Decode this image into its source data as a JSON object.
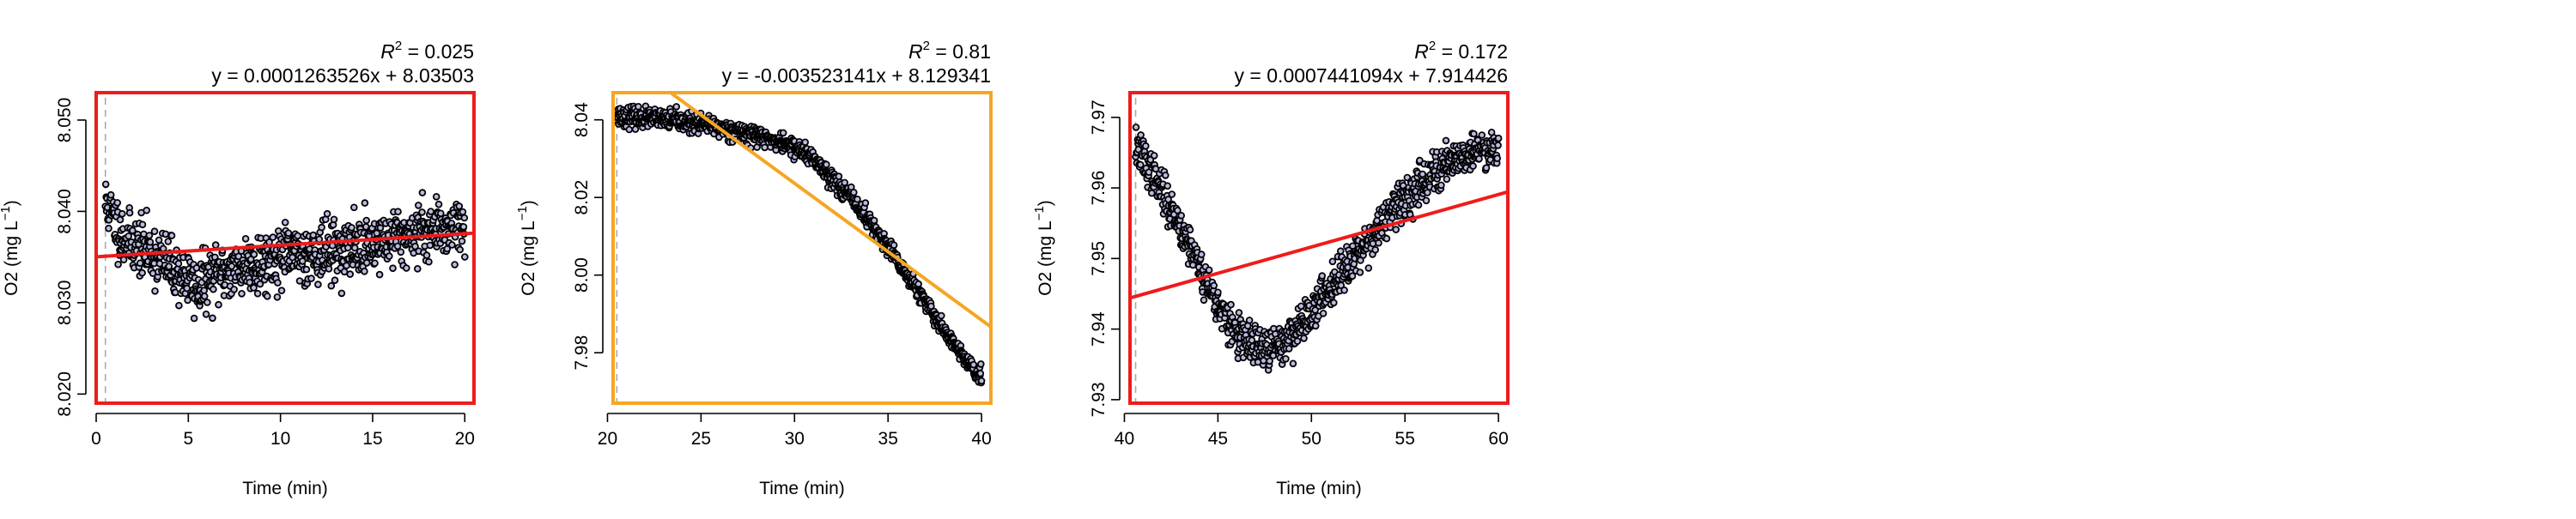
{
  "chart_data": [
    {
      "type": "scatter",
      "xlabel": "Time (min)",
      "ylabel": "O2 (mg L",
      "ylabel_unit_suffix": ")",
      "ylabel_sup": "−1",
      "r2_label": "R",
      "r2_sup": "2",
      "r2_value": " = 0.025",
      "equation": "y = 0.0001263526x + 8.03503",
      "slope": 0.0001263526,
      "intercept": 8.03503,
      "xlim": [
        0,
        20.5
      ],
      "ylim": [
        8.019,
        8.053
      ],
      "xticks": [
        "0",
        "5",
        "10",
        "15",
        "20"
      ],
      "yticks": [
        "8.020",
        "8.030",
        "8.040",
        "8.050"
      ],
      "highlight_color": "#ee1c1c",
      "marker_x": 0.5,
      "series": [
        {
          "trend": [
            [
              0.5,
              8.041
            ],
            [
              1,
              8.039
            ],
            [
              1.5,
              8.037
            ],
            [
              2,
              8.0365
            ],
            [
              3,
              8.0355
            ],
            [
              4,
              8.034
            ],
            [
              5,
              8.0325
            ],
            [
              5.5,
              8.0315
            ],
            [
              6,
              8.0325
            ],
            [
              7,
              8.0335
            ],
            [
              8,
              8.034
            ],
            [
              10,
              8.035
            ],
            [
              12,
              8.0355
            ],
            [
              14,
              8.036
            ],
            [
              16,
              8.037
            ],
            [
              18,
              8.038
            ],
            [
              20,
              8.0385
            ]
          ],
          "noise": 0.0029,
          "n": 900,
          "seed": 11
        }
      ]
    },
    {
      "type": "scatter",
      "xlabel": "Time (min)",
      "ylabel": "O2 (mg L",
      "ylabel_unit_suffix": ")",
      "ylabel_sup": "−1",
      "r2_label": "R",
      "r2_sup": "2",
      "r2_value": " = 0.81",
      "equation": "y = -0.003523141x + 8.129341",
      "slope": -0.003523141,
      "intercept": 8.129341,
      "xlim": [
        20.3,
        40.5
      ],
      "ylim": [
        7.967,
        8.047
      ],
      "xticks": [
        "20",
        "25",
        "30",
        "35",
        "40"
      ],
      "yticks": [
        "7.98",
        "8.00",
        "8.02",
        "8.04"
      ],
      "highlight_color": "#f5a623",
      "marker_x": 20.5,
      "series": [
        {
          "trend": [
            [
              20.5,
              8.041
            ],
            [
              22,
              8.0405
            ],
            [
              24,
              8.0395
            ],
            [
              26,
              8.038
            ],
            [
              28,
              8.036
            ],
            [
              30,
              8.033
            ],
            [
              31,
              8.03
            ],
            [
              32,
              8.025
            ],
            [
              33,
              8.02
            ],
            [
              34,
              8.014
            ],
            [
              35,
              8.007
            ],
            [
              36,
              8.0
            ],
            [
              37,
              7.993
            ],
            [
              38,
              7.986
            ],
            [
              39,
              7.979
            ],
            [
              40,
              7.973
            ]
          ],
          "noise": 0.0022,
          "n": 1000,
          "seed": 23
        }
      ]
    },
    {
      "type": "scatter",
      "xlabel": "Time (min)",
      "ylabel": "O2 (mg L",
      "ylabel_unit_suffix": ")",
      "ylabel_sup": "−1",
      "r2_label": "R",
      "r2_sup": "2",
      "r2_value": " = 0.172",
      "equation": "y = 0.0007441094x + 7.914426",
      "slope": 0.0007441094,
      "intercept": 7.914426,
      "xlim": [
        40.3,
        60.5
      ],
      "ylim": [
        7.9295,
        7.9735
      ],
      "xticks": [
        "40",
        "45",
        "50",
        "55",
        "60"
      ],
      "yticks": [
        "7.93",
        "7.94",
        "7.95",
        "7.96",
        "7.97"
      ],
      "highlight_color": "#ee1c1c",
      "marker_x": 40.6,
      "series": [
        {
          "trend": [
            [
              40.6,
              7.966
            ],
            [
              41.5,
              7.962
            ],
            [
              42.5,
              7.957
            ],
            [
              43.5,
              7.952
            ],
            [
              44.5,
              7.946
            ],
            [
              45.5,
              7.941
            ],
            [
              46.5,
              7.938
            ],
            [
              47.5,
              7.937
            ],
            [
              48.5,
              7.938
            ],
            [
              49.5,
              7.941
            ],
            [
              50.5,
              7.944
            ],
            [
              51.5,
              7.948
            ],
            [
              52.5,
              7.951
            ],
            [
              53.5,
              7.954
            ],
            [
              54.5,
              7.957
            ],
            [
              55.5,
              7.96
            ],
            [
              56.5,
              7.962
            ],
            [
              57.5,
              7.964
            ],
            [
              58.5,
              7.965
            ],
            [
              60,
              7.966
            ]
          ],
          "noise": 0.0026,
          "n": 900,
          "seed": 37
        }
      ]
    }
  ]
}
